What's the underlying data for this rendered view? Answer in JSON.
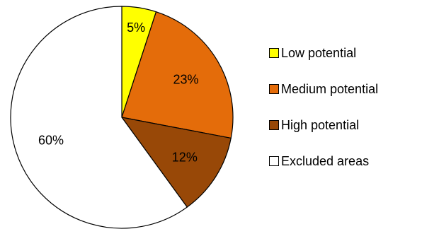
{
  "chart_data": {
    "type": "pie",
    "title": "",
    "start_angle_deg": 0,
    "direction": "clockwise",
    "slices": [
      {
        "label": "Low potential",
        "value": 5,
        "value_label": "5%",
        "color": "#FFFF00"
      },
      {
        "label": "Medium potential",
        "value": 23,
        "value_label": "23%",
        "color": "#E46C0A"
      },
      {
        "label": "High potential",
        "value": 12,
        "value_label": "12%",
        "color": "#984807"
      },
      {
        "label": "Excluded areas",
        "value": 60,
        "value_label": "60%",
        "color": "#FFFFFF"
      }
    ],
    "legend_position": "right"
  }
}
